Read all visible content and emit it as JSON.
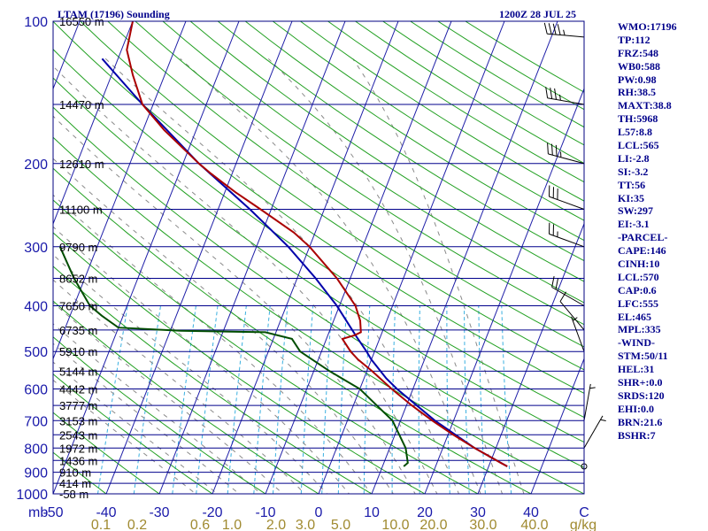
{
  "title_left": "LTAM (17196) Sounding",
  "title_right": "1200Z 28 JUL 25",
  "colors": {
    "isobar": "#00008b",
    "isotherm": "#1f1fa8",
    "dry_adiabat": "#22a022",
    "moist_adiabat": "#8a8a8a",
    "mixing_ratio": "#3ab0e0",
    "temperature": "#aa0000",
    "dewpoint": "#004d00",
    "parcel": "#0000aa",
    "text": "#00008b"
  },
  "chart_data": {
    "type": "skew-t",
    "pressure_ticks": [
      "100",
      "200",
      "300",
      "400",
      "500",
      "600",
      "700",
      "800",
      "900",
      "1000"
    ],
    "pressure_axis_label": "mb",
    "temperature_ticks": [
      "-50",
      "-40",
      "-30",
      "-20",
      "-10",
      "0",
      "10",
      "20",
      "30",
      "40",
      "C"
    ],
    "temperature_range": [
      -50,
      50
    ],
    "pressure_range": [
      100,
      1000
    ],
    "mixing_ratio_ticks": [
      "0.1",
      "0.2",
      "0.6",
      "1.0",
      "2.0",
      "3.0",
      "5.0",
      "10.0",
      "20.0",
      "30.0",
      "40.0",
      "g/kg"
    ],
    "height_levels": [
      {
        "p": 100,
        "label": "16550 m"
      },
      {
        "p": 150,
        "label": "14470 m"
      },
      {
        "p": 200,
        "label": "12610 m"
      },
      {
        "p": 250,
        "label": "11100 m"
      },
      {
        "p": 300,
        "label": "9790 m"
      },
      {
        "p": 350,
        "label": "8652 m"
      },
      {
        "p": 400,
        "label": "7650 m"
      },
      {
        "p": 450,
        "label": "6735 m"
      },
      {
        "p": 500,
        "label": "5910 m"
      },
      {
        "p": 550,
        "label": "5144 m"
      },
      {
        "p": 600,
        "label": "4442 m"
      },
      {
        "p": 650,
        "label": "3777 m"
      },
      {
        "p": 700,
        "label": "3153 m"
      },
      {
        "p": 750,
        "label": "2543 m"
      },
      {
        "p": 800,
        "label": "1972 m"
      },
      {
        "p": 850,
        "label": "1436 m"
      },
      {
        "p": 900,
        "label": "910 m"
      },
      {
        "p": 950,
        "label": "414 m"
      },
      {
        "p": 1000,
        "label": "-58 m"
      }
    ],
    "temperature": [
      {
        "p": 875,
        "t": 33.5
      },
      {
        "p": 860,
        "t": 32
      },
      {
        "p": 800,
        "t": 26
      },
      {
        "p": 750,
        "t": 21
      },
      {
        "p": 700,
        "t": 16
      },
      {
        "p": 650,
        "t": 11
      },
      {
        "p": 600,
        "t": 6
      },
      {
        "p": 550,
        "t": 1
      },
      {
        "p": 520,
        "t": -2.5
      },
      {
        "p": 500,
        "t": -4.5
      },
      {
        "p": 470,
        "t": -7
      },
      {
        "p": 462,
        "t": -5
      },
      {
        "p": 455,
        "t": -4
      },
      {
        "p": 430,
        "t": -5
      },
      {
        "p": 400,
        "t": -7
      },
      {
        "p": 350,
        "t": -12.5
      },
      {
        "p": 300,
        "t": -20
      },
      {
        "p": 280,
        "t": -24
      },
      {
        "p": 250,
        "t": -32
      },
      {
        "p": 230,
        "t": -38
      },
      {
        "p": 210,
        "t": -44
      },
      {
        "p": 200,
        "t": -47
      },
      {
        "p": 170,
        "t": -56
      },
      {
        "p": 150,
        "t": -62
      },
      {
        "p": 130,
        "t": -66
      },
      {
        "p": 115,
        "t": -69
      },
      {
        "p": 100,
        "t": -70
      }
    ],
    "dewpoint": [
      {
        "p": 875,
        "t": 14
      },
      {
        "p": 860,
        "t": 14.5
      },
      {
        "p": 800,
        "t": 13
      },
      {
        "p": 700,
        "t": 8.5
      },
      {
        "p": 600,
        "t": 0
      },
      {
        "p": 550,
        "t": -7
      },
      {
        "p": 500,
        "t": -14
      },
      {
        "p": 470,
        "t": -16.5
      },
      {
        "p": 455,
        "t": -22
      },
      {
        "p": 452,
        "t": -38
      },
      {
        "p": 445,
        "t": -50
      },
      {
        "p": 420,
        "t": -54
      },
      {
        "p": 400,
        "t": -57
      },
      {
        "p": 350,
        "t": -62
      },
      {
        "p": 300,
        "t": -67
      }
    ],
    "parcel": [
      {
        "p": 875,
        "t": 33.5
      },
      {
        "p": 800,
        "t": 26
      },
      {
        "p": 700,
        "t": 16.5
      },
      {
        "p": 600,
        "t": 7
      },
      {
        "p": 570,
        "t": 4.2
      },
      {
        "p": 520,
        "t": 0
      },
      {
        "p": 500,
        "t": -1.5
      },
      {
        "p": 465,
        "t": -4.5
      },
      {
        "p": 400,
        "t": -10.5
      },
      {
        "p": 350,
        "t": -16.5
      },
      {
        "p": 300,
        "t": -24
      },
      {
        "p": 250,
        "t": -34
      },
      {
        "p": 200,
        "t": -47
      },
      {
        "p": 150,
        "t": -62
      },
      {
        "p": 120,
        "t": -73
      }
    ],
    "wind_barbs": [
      {
        "p": 108,
        "dir": 275,
        "kt": 45
      },
      {
        "p": 150,
        "dir": 280,
        "kt": 35
      },
      {
        "p": 200,
        "dir": 285,
        "kt": 35
      },
      {
        "p": 250,
        "dir": 290,
        "kt": 30
      },
      {
        "p": 300,
        "dir": 290,
        "kt": 25
      },
      {
        "p": 400,
        "dir": 300,
        "kt": 20
      },
      {
        "p": 450,
        "dir": 320,
        "kt": 10
      },
      {
        "p": 500,
        "dir": 340,
        "kt": 5
      },
      {
        "p": 700,
        "dir": 10,
        "kt": 5
      },
      {
        "p": 800,
        "dir": 30,
        "kt": 5
      },
      {
        "p": 875,
        "dir": 0,
        "kt": 0
      }
    ]
  },
  "indices": [
    "WMO:17196",
    "TP:112",
    "FRZ:548",
    "WB0:588",
    "PW:0.98",
    "RH:38.5",
    "MAXT:38.8",
    "TH:5968",
    "L57:8.8",
    "LCL:565",
    "LI:-2.8",
    "SI:-3.2",
    "TT:56",
    "KI:35",
    "SW:297",
    "EI:-3.1",
    "-PARCEL-",
    "CAPE:146",
    "CINH:10",
    "LCL:570",
    "CAP:0.6",
    "LFC:555",
    "EL:465",
    "MPL:335",
    "-WIND-",
    "STM:50/11",
    "HEL:31",
    "SHR+:0.0",
    "SRDS:120",
    "EHI:0.0",
    "BRN:21.6",
    "BSHR:7"
  ]
}
